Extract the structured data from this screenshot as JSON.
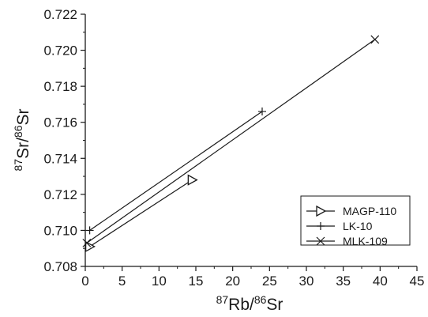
{
  "chart_data": {
    "type": "scatter",
    "title": "",
    "xlabel": {
      "pre": "87",
      "base": "Rb/",
      "mid": "86",
      "post": "Sr"
    },
    "ylabel": {
      "pre": "87",
      "base": "Sr/",
      "mid": "86",
      "post": "Sr"
    },
    "xlim": [
      0,
      45
    ],
    "ylim": [
      0.708,
      0.722
    ],
    "x_ticks": [
      "0",
      "5",
      "10",
      "15",
      "20",
      "25",
      "30",
      "35",
      "40",
      "45"
    ],
    "y_ticks": [
      "0.708",
      "0.710",
      "0.712",
      "0.714",
      "0.716",
      "0.718",
      "0.720",
      "0.722"
    ],
    "grid": false,
    "legend_position": "bottom-right",
    "series": [
      {
        "name": "MAGP-110",
        "marker": "triangle-right",
        "points": [
          [
            0.6,
            0.7091
          ],
          [
            14.5,
            0.7128
          ]
        ]
      },
      {
        "name": "LK-10",
        "marker": "plus",
        "points": [
          [
            0.6,
            0.71
          ],
          [
            24.0,
            0.7166
          ]
        ]
      },
      {
        "name": "MLK-109",
        "marker": "x",
        "points": [
          [
            0.2,
            0.7093
          ],
          [
            39.3,
            0.7206
          ]
        ]
      }
    ],
    "colors": {
      "ink": "#1a1a1a"
    }
  }
}
